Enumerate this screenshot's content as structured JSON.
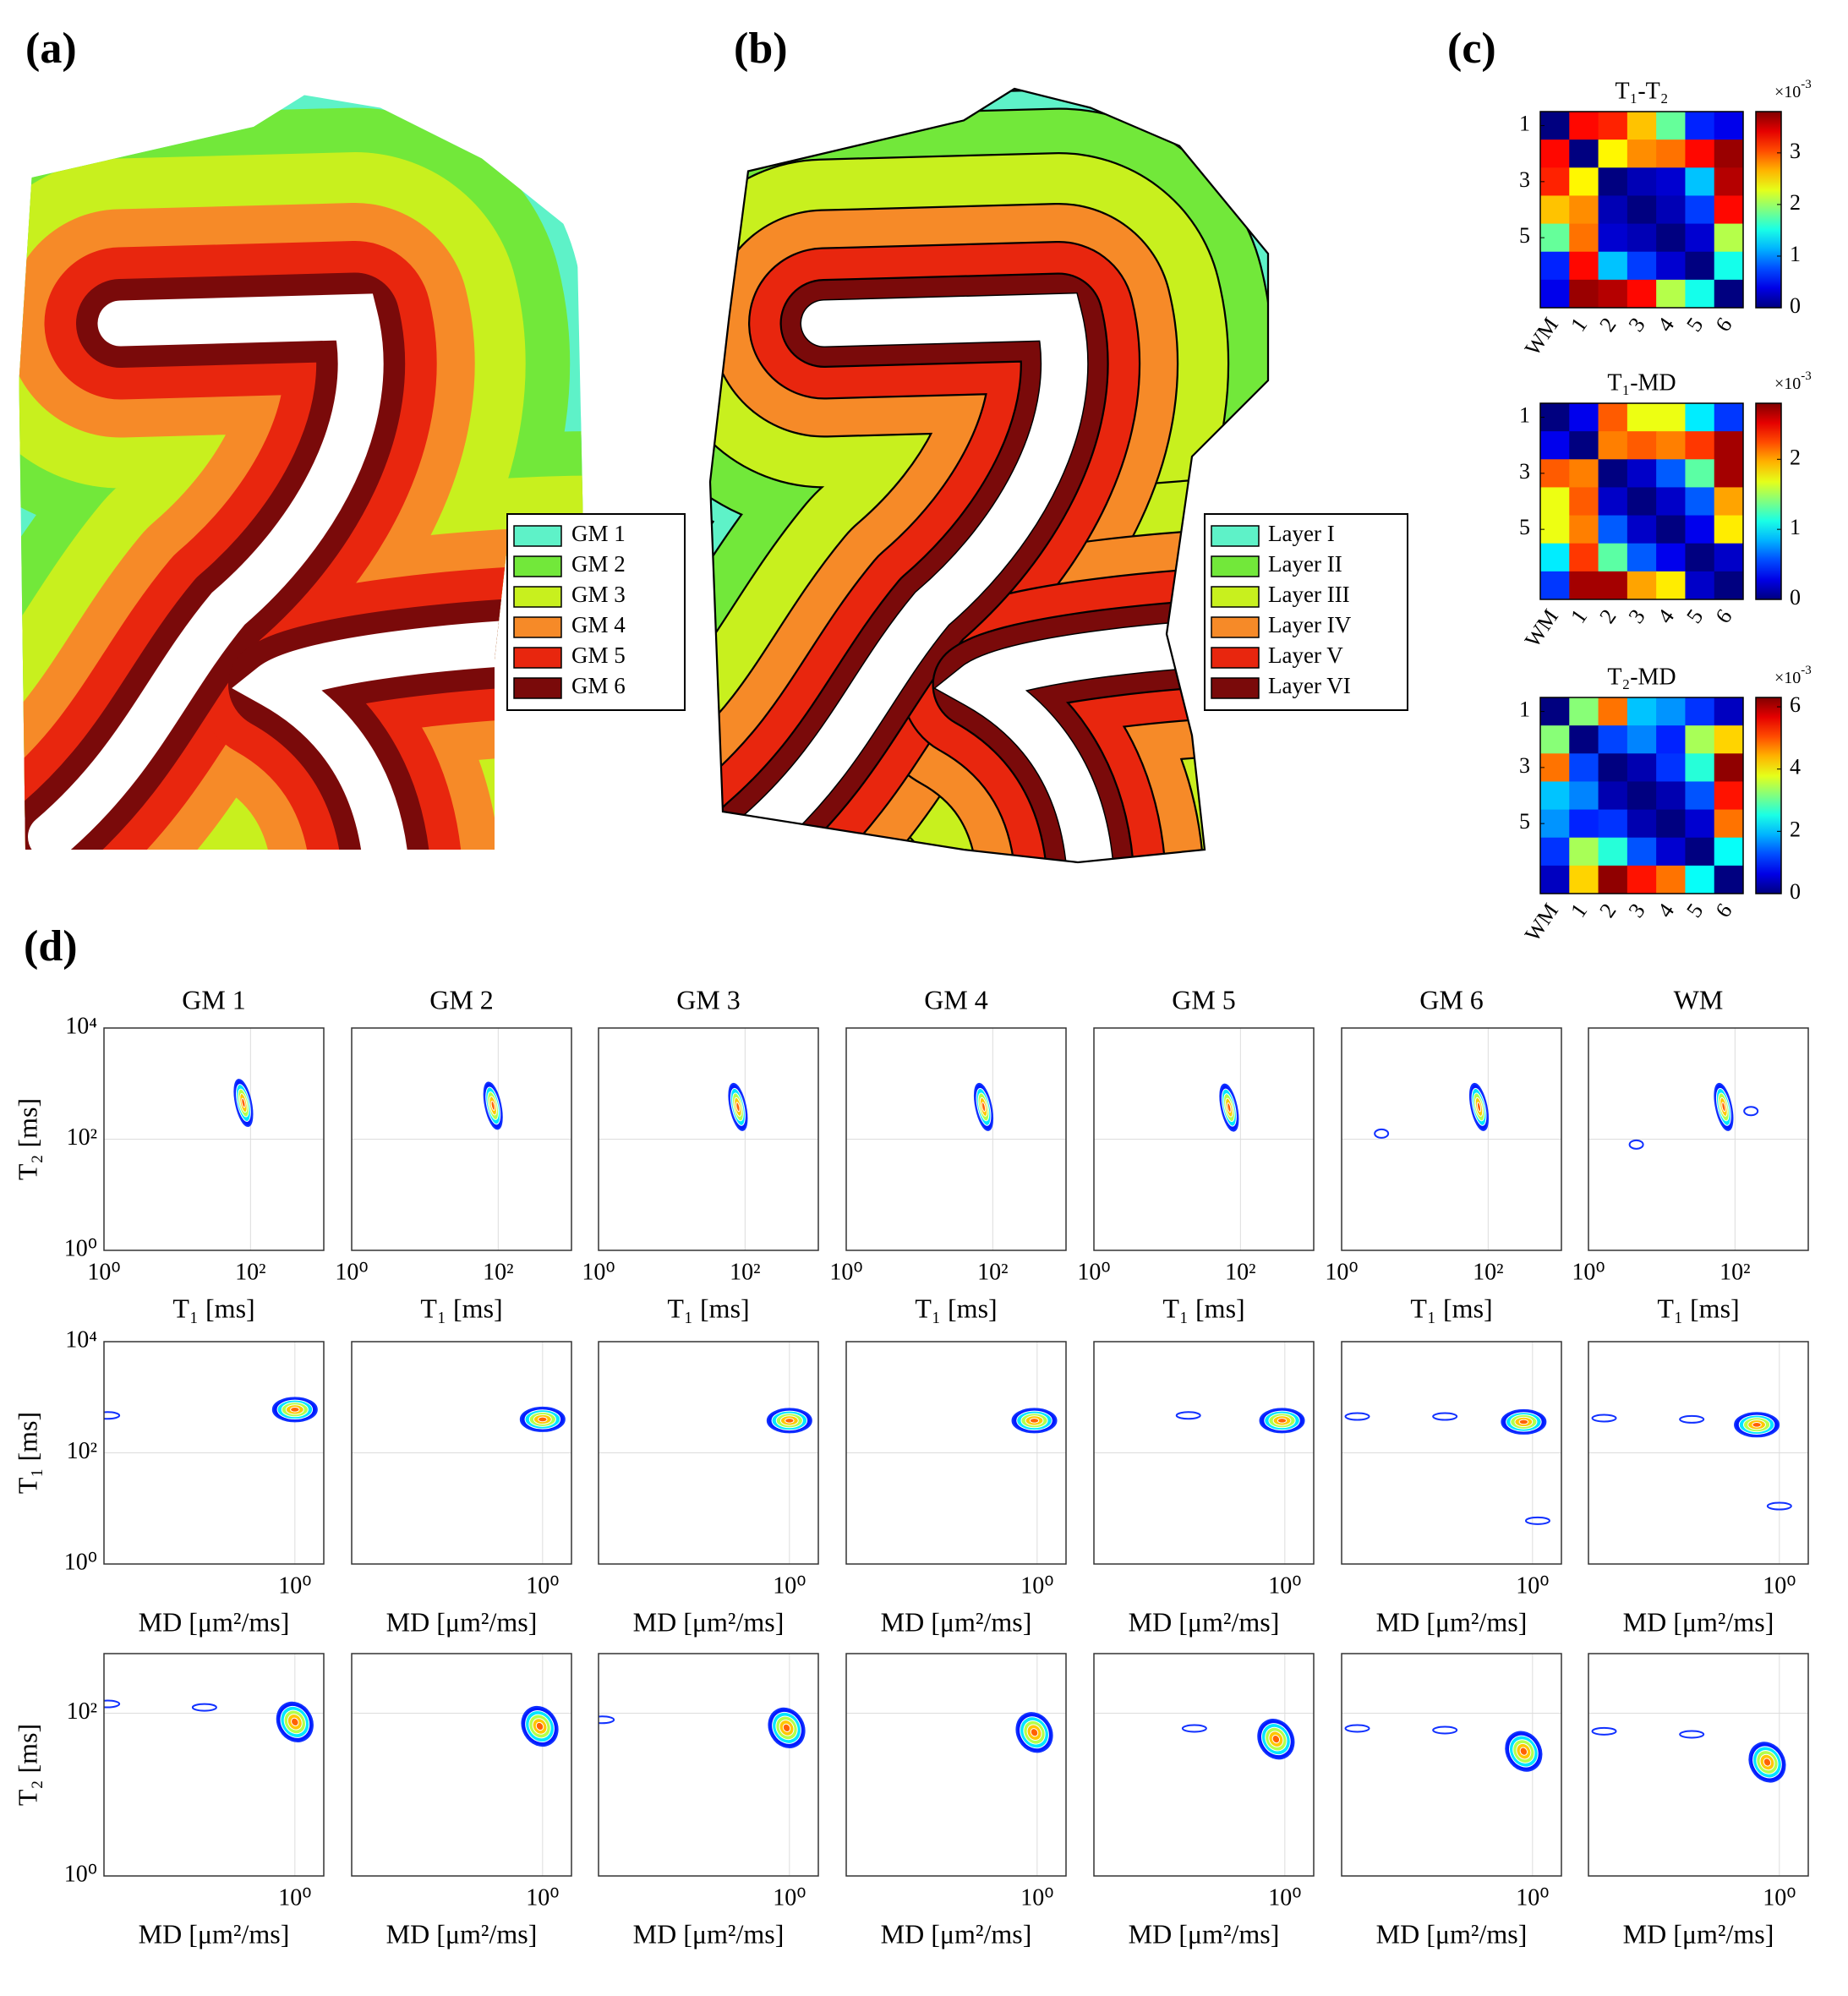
{
  "panel_labels": [
    "(a)",
    "(b)",
    "(c)",
    "(d)"
  ],
  "chart_data": [
    {
      "type": "map",
      "series": [
        {
          "name": "GM 1",
          "color": "#5ef2c8"
        },
        {
          "name": "GM 2",
          "color": "#72e83a"
        },
        {
          "name": "GM 3",
          "color": "#c8f01e"
        },
        {
          "name": "GM 4",
          "color": "#f68a28"
        },
        {
          "name": "GM 5",
          "color": "#e8260e"
        },
        {
          "name": "GM 6",
          "color": "#7a0a0a"
        }
      ]
    },
    {
      "type": "map",
      "outline": true,
      "series": [
        {
          "name": "Layer I",
          "color": "#5ef2c8"
        },
        {
          "name": "Layer II",
          "color": "#72e83a"
        },
        {
          "name": "Layer III",
          "color": "#c8f01e"
        },
        {
          "name": "Layer IV",
          "color": "#f68a28"
        },
        {
          "name": "Layer V",
          "color": "#e8260e"
        },
        {
          "name": "Layer VI",
          "color": "#7a0a0a"
        }
      ]
    },
    {
      "type": "heatmap",
      "title": "T₁-T₂",
      "categories": [
        "WM",
        "1",
        "2",
        "3",
        "4",
        "5",
        "6"
      ],
      "ylim": [
        0.5,
        7.5
      ],
      "yticks": [
        1,
        3,
        5
      ],
      "colormap": "jet",
      "clim": [
        0,
        3.8
      ],
      "cticks": [
        0,
        1,
        2,
        3
      ],
      "colorbar_multiplier": "×10",
      "colorbar_exponent": "-3",
      "values": [
        [
          0,
          3.3,
          3.2,
          2.6,
          1.8,
          0.6,
          0.4
        ],
        [
          3.3,
          0,
          2.4,
          2.8,
          2.9,
          3.3,
          3.7
        ],
        [
          3.2,
          2.4,
          0,
          0.2,
          0.3,
          1.2,
          3.6
        ],
        [
          2.6,
          2.8,
          0.2,
          0,
          0.2,
          0.7,
          3.3
        ],
        [
          1.8,
          2.9,
          0.3,
          0.2,
          0,
          0.3,
          2.1
        ],
        [
          0.6,
          3.3,
          1.2,
          0.7,
          0.3,
          0,
          1.5
        ],
        [
          0.4,
          3.7,
          3.6,
          3.3,
          2.1,
          1.5,
          0
        ]
      ]
    },
    {
      "type": "heatmap",
      "title": "T₁-MD",
      "categories": [
        "WM",
        "1",
        "2",
        "3",
        "4",
        "5",
        "6"
      ],
      "ylim": [
        0.5,
        7.5
      ],
      "yticks": [
        1,
        3,
        5
      ],
      "colormap": "jet",
      "clim": [
        0,
        2.8
      ],
      "cticks": [
        0,
        1,
        2
      ],
      "colorbar_multiplier": "×10",
      "colorbar_exponent": "-3",
      "values": [
        [
          0,
          0.3,
          2.2,
          1.7,
          1.7,
          1.0,
          0.5
        ],
        [
          0.3,
          0,
          2.1,
          2.2,
          2.1,
          2.3,
          2.7
        ],
        [
          2.2,
          2.1,
          0,
          0.2,
          0.6,
          1.3,
          2.7
        ],
        [
          1.7,
          2.2,
          0.2,
          0,
          0.2,
          0.6,
          2.0
        ],
        [
          1.7,
          2.1,
          0.6,
          0.2,
          0,
          0.3,
          1.8
        ],
        [
          1.0,
          2.3,
          1.3,
          0.6,
          0.3,
          0,
          0.2
        ],
        [
          0.5,
          2.7,
          2.7,
          2.0,
          1.8,
          0.2,
          0
        ]
      ]
    },
    {
      "type": "heatmap",
      "title": "T₂-MD",
      "categories": [
        "WM",
        "1",
        "2",
        "3",
        "4",
        "5",
        "6"
      ],
      "ylim": [
        0.5,
        7.5
      ],
      "yticks": [
        1,
        3,
        5
      ],
      "colormap": "jet",
      "clim": [
        0,
        6.3
      ],
      "cticks": [
        0,
        2,
        4,
        6
      ],
      "colorbar_multiplier": "×10",
      "colorbar_exponent": "-3",
      "values": [
        [
          0,
          3.2,
          4.8,
          2.0,
          1.7,
          1.1,
          0.4
        ],
        [
          3.2,
          0,
          1.2,
          1.6,
          1.0,
          3.4,
          4.2
        ],
        [
          4.8,
          1.2,
          0,
          0.3,
          1.1,
          2.6,
          6.2
        ],
        [
          2.0,
          1.6,
          0.3,
          0,
          0.3,
          1.3,
          5.4
        ],
        [
          1.7,
          1.0,
          1.1,
          0.3,
          0,
          0.5,
          4.8
        ],
        [
          1.1,
          3.4,
          2.6,
          1.3,
          0.5,
          0,
          2.4
        ],
        [
          0.4,
          4.2,
          6.2,
          5.4,
          4.8,
          2.4,
          0
        ]
      ]
    },
    {
      "type": "contour",
      "title": "GM 1",
      "xlabel": "T₁ [ms]",
      "ylabel": "T₂ [ms]",
      "xlim": [
        1,
        1000
      ],
      "ylim": [
        1,
        10000
      ],
      "xticks": [
        {
          "value": 1,
          "label": "10⁰"
        },
        {
          "value": 100,
          "label": "10²"
        }
      ],
      "yticks": [
        {
          "value": 1,
          "label": "10⁰"
        },
        {
          "value": 100,
          "label": "10²"
        },
        {
          "value": 10000,
          "label": "10⁴"
        }
      ],
      "log": true,
      "grid": true,
      "peaks": [
        {
          "x": 80,
          "y": 450
        }
      ]
    },
    {
      "type": "contour",
      "title": "GM 2",
      "xlabel": "T₁ [ms]",
      "xlim": [
        1,
        1000
      ],
      "ylim": [
        1,
        10000
      ],
      "xticks": [
        {
          "value": 1,
          "label": "10⁰"
        },
        {
          "value": 100,
          "label": "10²"
        }
      ],
      "yticks": [
        1,
        100,
        10000
      ],
      "ytick_labels": false,
      "log": true,
      "grid": true,
      "peaks": [
        {
          "x": 85,
          "y": 400
        }
      ]
    },
    {
      "type": "contour",
      "title": "GM 3",
      "xlabel": "T₁ [ms]",
      "xlim": [
        1,
        1000
      ],
      "ylim": [
        1,
        10000
      ],
      "xticks": [
        {
          "value": 1,
          "label": "10⁰"
        },
        {
          "value": 100,
          "label": "10²"
        }
      ],
      "yticks": [
        1,
        100,
        10000
      ],
      "ytick_labels": false,
      "log": true,
      "grid": true,
      "peaks": [
        {
          "x": 80,
          "y": 380
        }
      ]
    },
    {
      "type": "contour",
      "title": "GM 4",
      "xlabel": "T₁ [ms]",
      "xlim": [
        1,
        1000
      ],
      "ylim": [
        1,
        10000
      ],
      "xticks": [
        {
          "value": 1,
          "label": "10⁰"
        },
        {
          "value": 100,
          "label": "10²"
        }
      ],
      "yticks": [
        1,
        100,
        10000
      ],
      "ytick_labels": false,
      "log": true,
      "grid": true,
      "peaks": [
        {
          "x": 75,
          "y": 380
        }
      ]
    },
    {
      "type": "contour",
      "title": "GM 5",
      "xlabel": "T₁ [ms]",
      "xlim": [
        1,
        1000
      ],
      "ylim": [
        1,
        10000
      ],
      "xticks": [
        {
          "value": 1,
          "label": "10⁰"
        },
        {
          "value": 100,
          "label": "10²"
        }
      ],
      "yticks": [
        1,
        100,
        10000
      ],
      "ytick_labels": false,
      "log": true,
      "grid": true,
      "peaks": [
        {
          "x": 70,
          "y": 370
        }
      ]
    },
    {
      "type": "contour",
      "title": "GM 6",
      "xlabel": "T₁ [ms]",
      "xlim": [
        1,
        1000
      ],
      "ylim": [
        1,
        10000
      ],
      "xticks": [
        {
          "value": 1,
          "label": "10⁰"
        },
        {
          "value": 100,
          "label": "10²"
        }
      ],
      "yticks": [
        1,
        100,
        10000
      ],
      "ytick_labels": false,
      "log": true,
      "grid": true,
      "peaks": [
        {
          "x": 75,
          "y": 380
        }
      ],
      "minor_peaks": [
        {
          "x": 3.5,
          "y": 126
        }
      ]
    },
    {
      "type": "contour",
      "title": "WM",
      "xlabel": "T₁ [ms]",
      "xlim": [
        1,
        1000
      ],
      "ylim": [
        1,
        10000
      ],
      "xticks": [
        {
          "value": 1,
          "label": "10⁰"
        },
        {
          "value": 100,
          "label": "10²"
        }
      ],
      "yticks": [
        1,
        100,
        10000
      ],
      "ytick_labels": false,
      "log": true,
      "grid": true,
      "peaks": [
        {
          "x": 70,
          "y": 380
        }
      ],
      "minor_peaks": [
        {
          "x": 4.5,
          "y": 80
        },
        {
          "x": 165,
          "y": 320
        }
      ]
    },
    {
      "type": "contour",
      "xlabel": "MD [μm²/ms]",
      "ylabel": "T₁ [ms]",
      "xlim": [
        0.03,
        1.7
      ],
      "ylim": [
        1,
        10000
      ],
      "xticks": [
        {
          "value": 1,
          "label": "10⁰"
        }
      ],
      "yticks": [
        {
          "value": 1,
          "label": "10⁰"
        },
        {
          "value": 100,
          "label": "10²"
        },
        {
          "value": 10000,
          "label": "10⁴"
        }
      ],
      "log": true,
      "grid": true,
      "peaks": [
        {
          "x": 1.0,
          "y": 600
        }
      ],
      "minor_peaks": [
        {
          "x": 0.032,
          "y": 470
        }
      ]
    },
    {
      "type": "contour",
      "xlabel": "MD [μm²/ms]",
      "xlim": [
        0.03,
        1.7
      ],
      "ylim": [
        1,
        10000
      ],
      "xticks": [
        {
          "value": 1,
          "label": "10⁰"
        }
      ],
      "yticks": [
        1,
        100,
        10000
      ],
      "ytick_labels": false,
      "log": true,
      "grid": true,
      "peaks": [
        {
          "x": 1.0,
          "y": 400
        }
      ]
    },
    {
      "type": "contour",
      "xlabel": "MD [μm²/ms]",
      "xlim": [
        0.03,
        1.7
      ],
      "ylim": [
        1,
        10000
      ],
      "xticks": [
        {
          "value": 1,
          "label": "10⁰"
        }
      ],
      "yticks": [
        1,
        100,
        10000
      ],
      "ytick_labels": false,
      "log": true,
      "grid": true,
      "peaks": [
        {
          "x": 1.0,
          "y": 380
        }
      ]
    },
    {
      "type": "contour",
      "xlabel": "MD [μm²/ms]",
      "xlim": [
        0.03,
        1.7
      ],
      "ylim": [
        1,
        10000
      ],
      "xticks": [
        {
          "value": 1,
          "label": "10⁰"
        }
      ],
      "yticks": [
        1,
        100,
        10000
      ],
      "ytick_labels": false,
      "log": true,
      "grid": true,
      "peaks": [
        {
          "x": 0.95,
          "y": 380
        }
      ]
    },
    {
      "type": "contour",
      "xlabel": "MD [μm²/ms]",
      "xlim": [
        0.03,
        1.7
      ],
      "ylim": [
        1,
        10000
      ],
      "xticks": [
        {
          "value": 1,
          "label": "10⁰"
        }
      ],
      "yticks": [
        1,
        100,
        10000
      ],
      "ytick_labels": false,
      "log": true,
      "grid": true,
      "peaks": [
        {
          "x": 0.95,
          "y": 380
        }
      ],
      "minor_peaks": [
        {
          "x": 0.17,
          "y": 470
        }
      ]
    },
    {
      "type": "contour",
      "xlabel": "MD [μm²/ms]",
      "xlim": [
        0.03,
        1.7
      ],
      "ylim": [
        1,
        10000
      ],
      "xticks": [
        {
          "value": 1,
          "label": "10⁰"
        }
      ],
      "yticks": [
        1,
        100,
        10000
      ],
      "ytick_labels": false,
      "log": true,
      "grid": true,
      "peaks": [
        {
          "x": 0.85,
          "y": 360
        }
      ],
      "minor_peaks": [
        {
          "x": 0.04,
          "y": 450
        },
        {
          "x": 0.2,
          "y": 450
        },
        {
          "x": 1.1,
          "y": 6
        }
      ]
    },
    {
      "type": "contour",
      "xlabel": "MD [μm²/ms]",
      "xlim": [
        0.03,
        1.7
      ],
      "ylim": [
        1,
        10000
      ],
      "xticks": [
        {
          "value": 1,
          "label": "10⁰"
        }
      ],
      "yticks": [
        1,
        100,
        10000
      ],
      "ytick_labels": false,
      "log": true,
      "grid": true,
      "peaks": [
        {
          "x": 0.66,
          "y": 320
        }
      ],
      "minor_peaks": [
        {
          "x": 0.04,
          "y": 420
        },
        {
          "x": 0.2,
          "y": 400
        },
        {
          "x": 1.0,
          "y": 11
        }
      ]
    },
    {
      "type": "contour",
      "xlabel": "MD [μm²/ms]",
      "ylabel": "T₂ [ms]",
      "xlim": [
        0.03,
        1.7
      ],
      "ylim": [
        1,
        540
      ],
      "xticks": [
        {
          "value": 1,
          "label": "10⁰"
        }
      ],
      "yticks": [
        {
          "value": 1,
          "label": "10⁰"
        },
        {
          "value": 100,
          "label": "10²"
        }
      ],
      "log": true,
      "grid": true,
      "peaks": [
        {
          "x": 1.0,
          "y": 78
        }
      ],
      "minor_peaks": [
        {
          "x": 0.032,
          "y": 130
        },
        {
          "x": 0.19,
          "y": 118
        }
      ]
    },
    {
      "type": "contour",
      "xlabel": "MD [μm²/ms]",
      "xlim": [
        0.03,
        1.7
      ],
      "ylim": [
        1,
        540
      ],
      "xticks": [
        {
          "value": 1,
          "label": "10⁰"
        }
      ],
      "yticks": [
        1,
        100
      ],
      "ytick_labels": false,
      "log": true,
      "grid": true,
      "peaks": [
        {
          "x": 0.95,
          "y": 69
        }
      ]
    },
    {
      "type": "contour",
      "xlabel": "MD [μm²/ms]",
      "xlim": [
        0.03,
        1.7
      ],
      "ylim": [
        1,
        540
      ],
      "xticks": [
        {
          "value": 1,
          "label": "10⁰"
        }
      ],
      "yticks": [
        1,
        100
      ],
      "ytick_labels": false,
      "log": true,
      "grid": true,
      "peaks": [
        {
          "x": 0.95,
          "y": 66
        }
      ],
      "minor_peaks": [
        {
          "x": 0.032,
          "y": 83
        }
      ]
    },
    {
      "type": "contour",
      "xlabel": "MD [μm²/ms]",
      "xlim": [
        0.03,
        1.7
      ],
      "ylim": [
        1,
        540
      ],
      "xticks": [
        {
          "value": 1,
          "label": "10⁰"
        }
      ],
      "yticks": [
        1,
        100
      ],
      "ytick_labels": false,
      "log": true,
      "grid": true,
      "peaks": [
        {
          "x": 0.95,
          "y": 58
        }
      ]
    },
    {
      "type": "contour",
      "xlabel": "MD [μm²/ms]",
      "xlim": [
        0.03,
        1.7
      ],
      "ylim": [
        1,
        540
      ],
      "xticks": [
        {
          "value": 1,
          "label": "10⁰"
        }
      ],
      "yticks": [
        1,
        100
      ],
      "ytick_labels": false,
      "log": true,
      "grid": true,
      "peaks": [
        {
          "x": 0.85,
          "y": 48
        }
      ],
      "minor_peaks": [
        {
          "x": 0.19,
          "y": 65
        }
      ]
    },
    {
      "type": "contour",
      "xlabel": "MD [μm²/ms]",
      "xlim": [
        0.03,
        1.7
      ],
      "ylim": [
        1,
        540
      ],
      "xticks": [
        {
          "value": 1,
          "label": "10⁰"
        }
      ],
      "yticks": [
        1,
        100
      ],
      "ytick_labels": false,
      "log": true,
      "grid": true,
      "peaks": [
        {
          "x": 0.85,
          "y": 34
        }
      ],
      "minor_peaks": [
        {
          "x": 0.04,
          "y": 65
        },
        {
          "x": 0.2,
          "y": 62
        }
      ]
    },
    {
      "type": "contour",
      "xlabel": "MD [μm²/ms]",
      "xlim": [
        0.03,
        1.7
      ],
      "ylim": [
        1,
        540
      ],
      "xticks": [
        {
          "value": 1,
          "label": "10⁰"
        }
      ],
      "yticks": [
        1,
        100
      ],
      "ytick_labels": false,
      "log": true,
      "grid": true,
      "peaks": [
        {
          "x": 0.8,
          "y": 25
        }
      ],
      "minor_peaks": [
        {
          "x": 0.04,
          "y": 60
        },
        {
          "x": 0.2,
          "y": 55
        }
      ]
    }
  ]
}
